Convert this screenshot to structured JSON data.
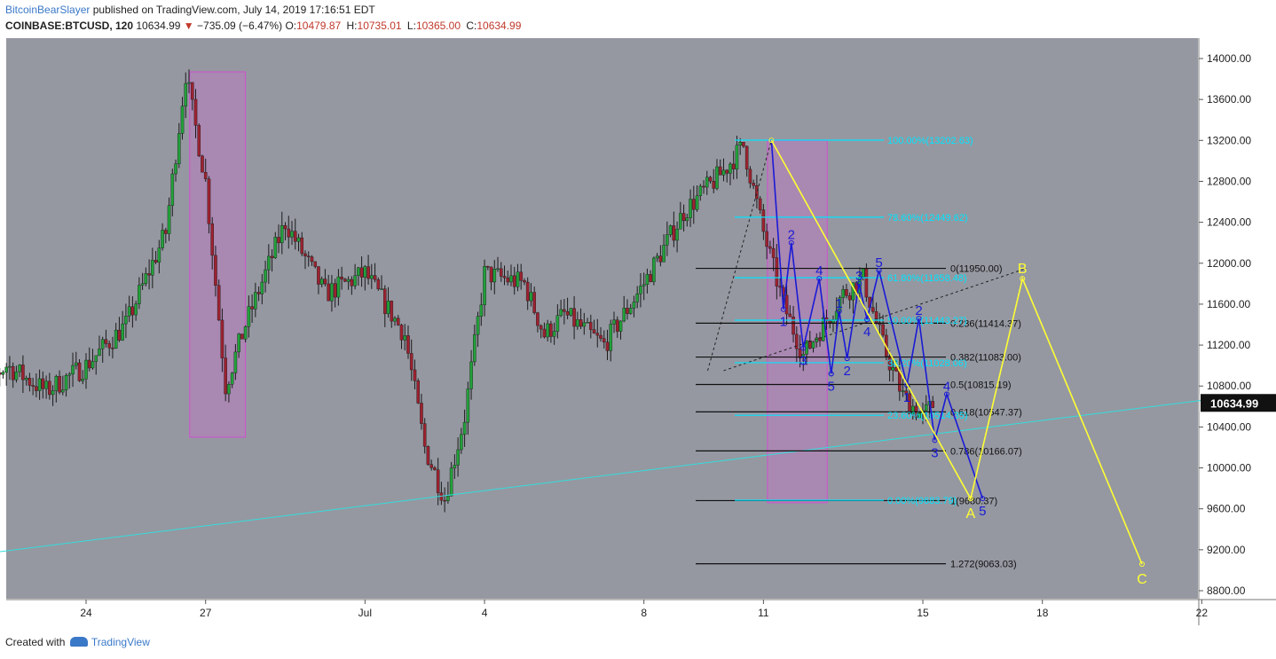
{
  "header": {
    "author": "BitcoinBearSlayer",
    "published_text": "published on TradingView.com, July 14, 2019 17:16:51 EDT",
    "symbol": "COINBASE:BTCUSD, 120",
    "last": "10634.99",
    "change": "−735.09 (−6.47%)",
    "o_label": "O:",
    "o_value": "10479.87",
    "h_label": "H:",
    "h_value": "10735.01",
    "l_label": "L:",
    "l_value": "10365.00",
    "c_label": "C:",
    "c_value": "10634.99"
  },
  "footer": {
    "created_with": "Created with",
    "brand": "TradingView"
  },
  "colors": {
    "background": "#9598a1",
    "up": "#22a03a",
    "down": "#9c2230",
    "fib_main": "#00e5ff",
    "fib_secondary": "#111111",
    "wave_minor": "#1a1ad6",
    "wave_major": "#ffff33",
    "trendline": "#33dddd",
    "box": "#d04fd0"
  },
  "chart_data": {
    "type": "candlestick",
    "title": "",
    "y_axis": {
      "range": [
        8700,
        14200
      ],
      "ticks": [
        "14000.00",
        "13600.00",
        "13200.00",
        "12800.00",
        "12400.00",
        "12000.00",
        "11600.00",
        "11200.00",
        "10800.00",
        "10400.00",
        "10000.00",
        "9600.00",
        "9200.00",
        "8800.00"
      ],
      "tick_values": [
        14000,
        13600,
        13200,
        12800,
        12400,
        12000,
        11600,
        11200,
        10800,
        10400,
        10000,
        9600,
        9200,
        8800
      ],
      "current_price_label": "10634.99",
      "current_price": 10634.99
    },
    "x_axis": {
      "ticks": [
        "24",
        "27",
        "Jul",
        "4",
        "8",
        "11",
        "15",
        "18",
        "22"
      ],
      "tick_days": [
        24,
        27,
        31,
        34,
        38,
        41,
        45,
        48,
        52
      ]
    },
    "price_path": [
      [
        21.0,
        10650
      ],
      [
        22.0,
        11000
      ],
      [
        23.0,
        10750
      ],
      [
        24.0,
        11000
      ],
      [
        25.0,
        11400
      ],
      [
        26.0,
        12300
      ],
      [
        26.5,
        13850
      ],
      [
        27.0,
        12800
      ],
      [
        27.5,
        10800
      ],
      [
        28.0,
        11400
      ],
      [
        29.0,
        12400
      ],
      [
        30.0,
        11700
      ],
      [
        31.0,
        11900
      ],
      [
        32.0,
        11300
      ],
      [
        32.5,
        10200
      ],
      [
        33.0,
        9700
      ],
      [
        33.5,
        10500
      ],
      [
        34.0,
        11900
      ],
      [
        35.0,
        11800
      ],
      [
        35.5,
        11300
      ],
      [
        36.0,
        11500
      ],
      [
        37.0,
        11200
      ],
      [
        37.5,
        11500
      ],
      [
        38.0,
        11800
      ],
      [
        39.0,
        12500
      ],
      [
        39.5,
        12700
      ],
      [
        40.0,
        12900
      ],
      [
        40.5,
        13150
      ],
      [
        41.0,
        12300
      ],
      [
        41.5,
        11600
      ],
      [
        42.0,
        11100
      ],
      [
        42.5,
        11400
      ],
      [
        43.0,
        11700
      ],
      [
        43.5,
        11850
      ],
      [
        44.0,
        11200
      ],
      [
        44.5,
        10700
      ],
      [
        45.0,
        10500
      ],
      [
        45.3,
        10640
      ]
    ],
    "fibonacci_retracement": [
      {
        "label": "100.00%(13202.63)",
        "value": 13202.63
      },
      {
        "label": "78.60%(12449.62)",
        "value": 12449.62
      },
      {
        "label": "61.80%(11858.48)",
        "value": 11858.48
      },
      {
        "label": "50.00%(11443.27)",
        "value": 11443.27
      },
      {
        "label": "38.20%(11028.06)",
        "value": 11028.06
      },
      {
        "label": "23.60%(10514.35)",
        "value": 10514.35
      },
      {
        "label": "0.00%(9683.79)",
        "value": 9683.79
      }
    ],
    "fibonacci_extension": [
      {
        "label": "0(11950.00)",
        "value": 11950.0
      },
      {
        "label": "0.236(11414.37)",
        "value": 11414.37
      },
      {
        "label": "0.382(11083.00)",
        "value": 11083.0
      },
      {
        "label": "0.5(10815.19)",
        "value": 10815.19
      },
      {
        "label": "0.618(10547.37)",
        "value": 10547.37
      },
      {
        "label": "0.786(10166.07)",
        "value": 10166.07
      },
      {
        "label": "1(9680.37)",
        "value": 9680.37
      },
      {
        "label": "1.272(9063.03)",
        "value": 9063.03
      }
    ],
    "highlight_boxes": [
      {
        "x": [
          26.6,
          28.0
        ],
        "y": [
          10300,
          13870
        ]
      },
      {
        "x": [
          41.1,
          42.6
        ],
        "y": [
          9660,
          13200
        ]
      }
    ],
    "trendline": [
      [
        21.0,
        9140
      ],
      [
        52.0,
        10660
      ]
    ],
    "abc_wave": [
      {
        "label": "",
        "x": 41.2,
        "y": 13202
      },
      {
        "label": "A",
        "x": 46.2,
        "y": 9700
      },
      {
        "label": "B",
        "x": 47.5,
        "y": 11850
      },
      {
        "label": "C",
        "x": 50.5,
        "y": 9060
      }
    ],
    "minor_wave_1": [
      {
        "label": "",
        "x": 41.2,
        "y": 13202
      },
      {
        "label": "1",
        "x": 41.5,
        "y": 11550
      },
      {
        "label": "2",
        "x": 41.7,
        "y": 12200
      },
      {
        "label": "3",
        "x": 42.0,
        "y": 11170
      },
      {
        "label": "4",
        "x": 42.4,
        "y": 11850
      },
      {
        "label": "5",
        "x": 42.7,
        "y": 10920
      }
    ],
    "minor_wave_2": [
      {
        "label": "",
        "x": 42.7,
        "y": 10920
      },
      {
        "label": "1",
        "x": 42.9,
        "y": 11530
      },
      {
        "label": "2",
        "x": 43.1,
        "y": 11070
      },
      {
        "label": "3",
        "x": 43.4,
        "y": 11800
      },
      {
        "label": "4",
        "x": 43.6,
        "y": 11450
      },
      {
        "label": "5",
        "x": 43.9,
        "y": 11930
      }
    ],
    "minor_wave_3": [
      {
        "label": "",
        "x": 43.9,
        "y": 11930
      },
      {
        "label": "1",
        "x": 44.6,
        "y": 10810
      },
      {
        "label": "2",
        "x": 44.9,
        "y": 11460
      },
      {
        "label": "3",
        "x": 45.3,
        "y": 10270
      },
      {
        "label": "4",
        "x": 45.6,
        "y": 10720
      },
      {
        "label": "5",
        "x": 46.5,
        "y": 9700
      }
    ],
    "dashed_triangle": [
      [
        39.6,
        10950
      ],
      [
        41.2,
        13202
      ],
      [
        40.0,
        10950
      ],
      [
        47.6,
        11950
      ]
    ]
  }
}
